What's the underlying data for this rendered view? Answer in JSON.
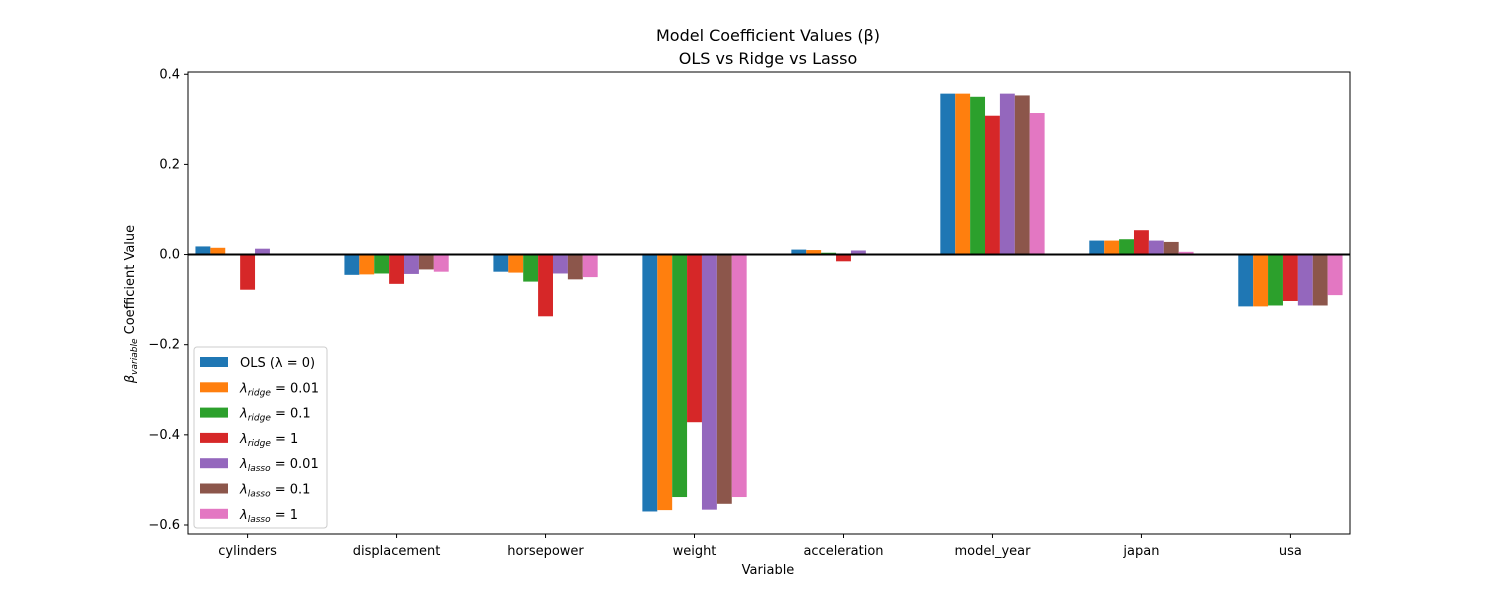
{
  "chart_data": {
    "type": "bar",
    "title_line1": "Model Coefficient Values (β)",
    "title_line2": "OLS vs Ridge vs Lasso",
    "xlabel": "Variable",
    "ylabel_beta": "β",
    "ylabel_sub": "variable",
    "ylabel_rest": " Coefficient Value",
    "ylim": [
      -0.62,
      0.405
    ],
    "yticks": [
      {
        "value": 0.4,
        "label": "0.4"
      },
      {
        "value": 0.2,
        "label": "0.2"
      },
      {
        "value": 0.0,
        "label": "0.0"
      },
      {
        "value": -0.2,
        "label": "−0.2"
      },
      {
        "value": -0.4,
        "label": "−0.4"
      },
      {
        "value": -0.6,
        "label": "−0.6"
      }
    ],
    "categories": [
      "cylinders",
      "displacement",
      "horsepower",
      "weight",
      "acceleration",
      "model_year",
      "japan",
      "usa"
    ],
    "grid": false,
    "zero_line": true,
    "legend_position": "lower-left",
    "series": [
      {
        "legend_main": "OLS (λ = 0)",
        "legend_sub": "",
        "legend_tail": "",
        "color": "#1f77b4",
        "values": [
          0.018,
          -0.045,
          -0.038,
          -0.57,
          0.011,
          0.357,
          0.031,
          -0.115
        ]
      },
      {
        "legend_main": "λ",
        "legend_sub": "ridge",
        "legend_tail": " = 0.01",
        "color": "#ff7f0e",
        "values": [
          0.015,
          -0.044,
          -0.04,
          -0.567,
          0.01,
          0.357,
          0.031,
          -0.115
        ]
      },
      {
        "legend_main": "λ",
        "legend_sub": "ridge",
        "legend_tail": " = 0.1",
        "color": "#2ca02c",
        "values": [
          0.002,
          -0.042,
          -0.06,
          -0.538,
          0.004,
          0.35,
          0.034,
          -0.113
        ]
      },
      {
        "legend_main": "λ",
        "legend_sub": "ridge",
        "legend_tail": " = 1",
        "color": "#d62728",
        "values": [
          -0.078,
          -0.065,
          -0.137,
          -0.372,
          -0.015,
          0.308,
          0.054,
          -0.103
        ]
      },
      {
        "legend_main": "λ",
        "legend_sub": "lasso",
        "legend_tail": " = 0.01",
        "color": "#9467bd",
        "values": [
          0.013,
          -0.043,
          -0.042,
          -0.566,
          0.009,
          0.357,
          0.031,
          -0.113
        ]
      },
      {
        "legend_main": "λ",
        "legend_sub": "lasso",
        "legend_tail": " = 0.1",
        "color": "#8c564b",
        "values": [
          0.0,
          -0.033,
          -0.055,
          -0.553,
          0.0,
          0.353,
          0.028,
          -0.113
        ]
      },
      {
        "legend_main": "λ",
        "legend_sub": "lasso",
        "legend_tail": " = 1",
        "color": "#e377c2",
        "values": [
          0.0,
          -0.038,
          -0.05,
          -0.538,
          0.0,
          0.314,
          0.006,
          -0.09
        ]
      }
    ]
  }
}
